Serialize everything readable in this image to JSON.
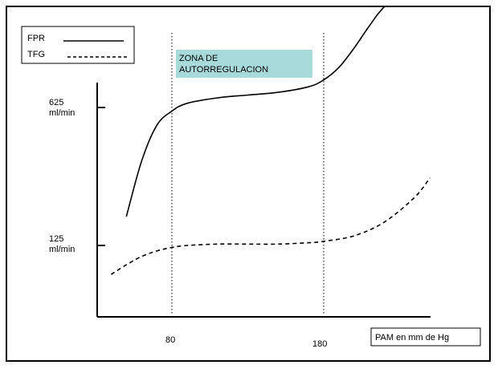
{
  "chart_data": {
    "type": "line",
    "title": "",
    "xlabel": "PAM en mm de Hg",
    "ylabel": "",
    "x_ticks": [
      "80",
      "180"
    ],
    "y_ticks": [
      {
        "value": 125,
        "lines": [
          "125",
          "ml/min"
        ]
      },
      {
        "value": 625,
        "lines": [
          "625",
          "ml/min"
        ]
      }
    ],
    "region": {
      "label_lines": [
        "ZONA DE",
        "AUTORREGULACION"
      ],
      "from": 80,
      "to": 180,
      "color": "#a8dadc"
    },
    "legend_position": "top-left",
    "grid": false,
    "series": [
      {
        "name": "FPR",
        "style": "solid",
        "x": [
          50,
          60,
          70,
          80,
          90,
          110,
          130,
          150,
          170,
          180,
          190,
          200,
          210,
          220,
          240
        ],
        "y": [
          230,
          430,
          560,
          612,
          640,
          660,
          670,
          680,
          700,
          725,
          770,
          840,
          920,
          990,
          1080
        ]
      },
      {
        "name": "TFG",
        "style": "dashed",
        "x": [
          40,
          50,
          60,
          70,
          80,
          90,
          110,
          130,
          150,
          170,
          180,
          200,
          220,
          240,
          250
        ],
        "y": [
          20,
          55,
          85,
          105,
          118,
          125,
          130,
          130,
          130,
          135,
          140,
          160,
          210,
          300,
          370
        ]
      }
    ]
  }
}
